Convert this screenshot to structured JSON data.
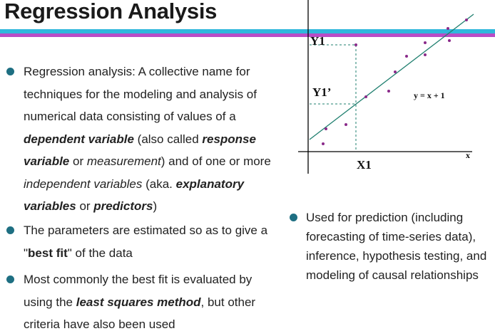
{
  "title": "Regression Analysis",
  "bullets_left": [
    {
      "p1": "Regression analysis: A collective name for techniques for the modeling and analysis of numerical data consisting of values of a ",
      "dependent_variable": "dependent variable",
      "p2": " (also called ",
      "response_variable": "response variable",
      "p3": " or ",
      "measurement": "measurement",
      "p4": ") and of one or more ",
      "independent_variables": "independent variables",
      "p5": " (aka. ",
      "explanatory_variables": "explanatory variables",
      "p6": " or ",
      "predictors": "predictors",
      "p7": ")"
    },
    {
      "p1": "The parameters are estimated so as to give a \"",
      "best_fit": "best fit",
      "p2": "\" of the data"
    },
    {
      "p1": "Most commonly the best fit is evaluated by using the ",
      "least_squares": "least squares method",
      "p2": ", but other criteria have also been used"
    }
  ],
  "bullet_right": "Used for prediction (including forecasting of time-series data), inference, hypothesis testing, and modeling of causal relationships",
  "diagram": {
    "label_y1": "Y1",
    "label_y1_prime": "Y1’",
    "label_x1": "X1",
    "label_x_axis": "x",
    "equation": "y = x + 1",
    "colors": {
      "line": "#1f7f6f",
      "points": "#8a2a8a",
      "guides": "#1f7f6f",
      "axis": "#000000"
    }
  }
}
